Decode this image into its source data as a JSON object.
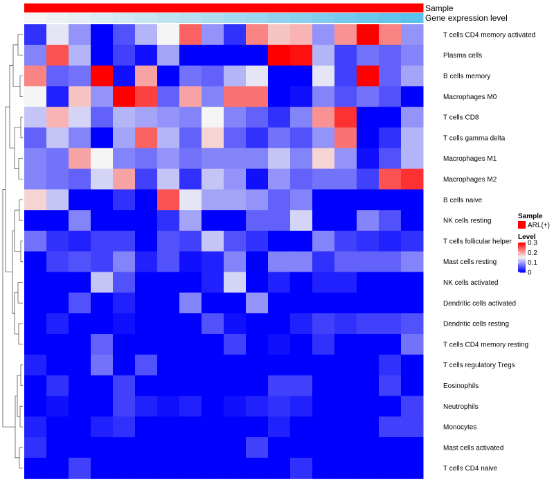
{
  "chart_data": {
    "type": "heatmap",
    "annotations": [
      {
        "name": "Sample",
        "kind": "sample"
      },
      {
        "name": "Gene expression level",
        "kind": "gradient",
        "low_color": "#f5f5f5",
        "high_color": "#5bc0eb"
      }
    ],
    "rows": [
      "T cells CD4 memory activated",
      "Plasma cells",
      "B cells memory",
      "Macrophages M0",
      "T cells CD8",
      "T cells gamma delta",
      "Macrophages M1",
      "Macrophages M2",
      "B cells naive",
      "NK cells resting",
      "T cells follicular helper",
      "Mast cells resting",
      "NK cells activated",
      "Dendritic cells activated",
      "Dendritic cells resting",
      "T cells CD4 memory resting",
      "T cells regulatory  Tregs",
      "Eosinophils",
      "Neutrophils",
      "Monocytes",
      "Mast cells activated",
      "T cells CD4 naive"
    ],
    "n_columns": 18,
    "values": [
      [
        0.03,
        0.14,
        0.09,
        0.0,
        0.05,
        0.11,
        0.15,
        0.24,
        0.09,
        0.03,
        0.22,
        0.18,
        0.19,
        0.09,
        0.21,
        0.3,
        0.22,
        0.09
      ],
      [
        0.08,
        0.25,
        0.11,
        0.0,
        0.04,
        0.01,
        0.1,
        0.0,
        0.0,
        0.0,
        0.0,
        0.3,
        0.29,
        0.11,
        0.04,
        0.07,
        0.06,
        0.08
      ],
      [
        0.22,
        0.06,
        0.07,
        0.3,
        0.01,
        0.2,
        0.0,
        0.07,
        0.06,
        0.11,
        0.14,
        0.0,
        0.0,
        0.14,
        0.04,
        0.3,
        0.06,
        0.1
      ],
      [
        0.15,
        0.02,
        0.18,
        0.09,
        0.3,
        0.26,
        0.06,
        0.2,
        0.08,
        0.23,
        0.23,
        0.0,
        0.01,
        0.08,
        0.05,
        0.07,
        0.05,
        0.0
      ],
      [
        0.12,
        0.19,
        0.13,
        0.06,
        0.11,
        0.1,
        0.09,
        0.08,
        0.15,
        0.08,
        0.06,
        0.03,
        0.08,
        0.21,
        0.27,
        0.0,
        0.0,
        0.09
      ],
      [
        0.06,
        0.12,
        0.08,
        0.0,
        0.1,
        0.24,
        0.11,
        0.06,
        0.17,
        0.06,
        0.03,
        0.07,
        0.05,
        0.09,
        0.23,
        0.0,
        0.03,
        0.11
      ],
      [
        0.08,
        0.07,
        0.2,
        0.15,
        0.08,
        0.07,
        0.09,
        0.07,
        0.08,
        0.08,
        0.08,
        0.12,
        0.08,
        0.17,
        0.09,
        0.01,
        0.05,
        0.11
      ],
      [
        0.08,
        0.07,
        0.06,
        0.13,
        0.2,
        0.04,
        0.12,
        0.03,
        0.12,
        0.09,
        0.01,
        0.09,
        0.06,
        0.07,
        0.07,
        0.04,
        0.25,
        0.27
      ],
      [
        0.17,
        0.12,
        0.0,
        0.0,
        0.03,
        0.0,
        0.25,
        0.14,
        0.1,
        0.1,
        0.09,
        0.06,
        0.08,
        0.0,
        0.0,
        0.0,
        0.0,
        0.0
      ],
      [
        0.0,
        0.0,
        0.08,
        0.0,
        0.0,
        0.0,
        0.03,
        0.1,
        0.0,
        0.0,
        0.06,
        0.06,
        0.13,
        0.0,
        0.0,
        0.08,
        0.05,
        0.0
      ],
      [
        0.07,
        0.03,
        0.02,
        0.04,
        0.04,
        0.0,
        0.05,
        0.04,
        0.12,
        0.05,
        0.03,
        0.0,
        0.0,
        0.08,
        0.04,
        0.03,
        0.02,
        0.03
      ],
      [
        0.0,
        0.04,
        0.05,
        0.04,
        0.08,
        0.02,
        0.05,
        0.01,
        0.02,
        0.08,
        0.0,
        0.08,
        0.08,
        0.03,
        0.06,
        0.06,
        0.06,
        0.08
      ],
      [
        0.0,
        0.0,
        0.0,
        0.12,
        0.05,
        0.0,
        0.0,
        0.0,
        0.02,
        0.13,
        0.0,
        0.02,
        0.0,
        0.02,
        0.02,
        0.0,
        0.0,
        0.0
      ],
      [
        0.0,
        0.0,
        0.05,
        0.0,
        0.02,
        0.0,
        0.0,
        0.08,
        0.0,
        0.0,
        0.09,
        0.0,
        0.0,
        0.0,
        0.0,
        0.0,
        0.0,
        0.0
      ],
      [
        0.0,
        0.02,
        0.0,
        0.0,
        0.01,
        0.0,
        0.0,
        0.0,
        0.05,
        0.01,
        0.0,
        0.0,
        0.02,
        0.04,
        0.03,
        0.04,
        0.04,
        0.05
      ],
      [
        0.0,
        0.0,
        0.0,
        0.06,
        0.0,
        0.0,
        0.0,
        0.0,
        0.0,
        0.04,
        0.0,
        0.01,
        0.0,
        0.03,
        0.0,
        0.0,
        0.0,
        0.07
      ],
      [
        0.02,
        0.0,
        0.0,
        0.07,
        0.0,
        0.05,
        0.0,
        0.0,
        0.0,
        0.0,
        0.0,
        0.0,
        0.0,
        0.0,
        0.0,
        0.0,
        0.03,
        0.0
      ],
      [
        0.0,
        0.03,
        0.0,
        0.0,
        0.04,
        0.0,
        0.0,
        0.0,
        0.0,
        0.0,
        0.0,
        0.04,
        0.04,
        0.0,
        0.0,
        0.0,
        0.04,
        0.0
      ],
      [
        0.0,
        0.01,
        0.0,
        0.0,
        0.04,
        0.02,
        0.01,
        0.02,
        0.0,
        0.01,
        0.02,
        0.03,
        0.02,
        0.0,
        0.0,
        0.0,
        0.0,
        0.04
      ],
      [
        0.02,
        0.0,
        0.0,
        0.02,
        0.03,
        0.0,
        0.0,
        0.0,
        0.0,
        0.0,
        0.0,
        0.02,
        0.0,
        0.0,
        0.0,
        0.0,
        0.04,
        0.04
      ],
      [
        0.03,
        0.0,
        0.0,
        0.0,
        0.0,
        0.0,
        0.0,
        0.0,
        0.0,
        0.0,
        0.04,
        0.0,
        0.0,
        0.0,
        0.0,
        0.0,
        0.0,
        0.0
      ],
      [
        0.0,
        0.0,
        0.04,
        0.0,
        0.0,
        0.0,
        0.0,
        0.0,
        0.0,
        0.0,
        0.0,
        0.0,
        0.03,
        0.0,
        0.0,
        0.0,
        0.0,
        0.0
      ]
    ],
    "color_scale": {
      "min": 0,
      "max": 0.3,
      "low": "#0000ff",
      "mid": "#f5f5f5",
      "high": "#ff0000",
      "midpoint": 0.15
    },
    "legend": {
      "sample_title": "Sample",
      "sample_entry": "ARL(+)",
      "sample_color": "#ff0000",
      "level_title": "Level",
      "level_ticks": [
        "0.3",
        "0.2",
        "0.1",
        "0"
      ],
      "level_tick_values": [
        0.3,
        0.2,
        0.1,
        0
      ]
    }
  }
}
